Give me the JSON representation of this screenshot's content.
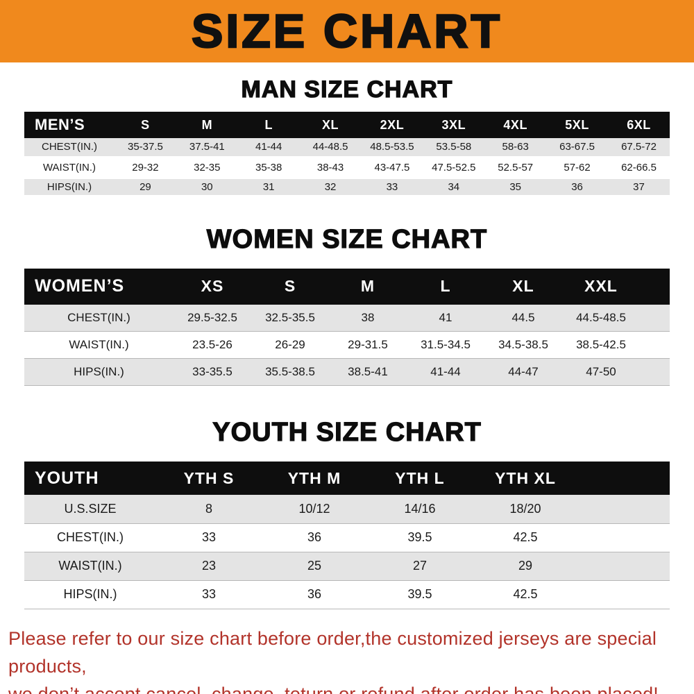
{
  "banner": {
    "title": "SIZE CHART",
    "bg": "#f0891d"
  },
  "sections": [
    {
      "heading": "MAN SIZE CHART",
      "table": {
        "name": "mens",
        "header": [
          "MEN’S",
          "S",
          "M",
          "L",
          "XL",
          "2XL",
          "3XL",
          "4XL",
          "5XL",
          "6XL"
        ],
        "rows": [
          [
            "CHEST(IN.)",
            "35-37.5",
            "37.5-41",
            "41-44",
            "44-48.5",
            "48.5-53.5",
            "53.5-58",
            "58-63",
            "63-67.5",
            "67.5-72"
          ],
          [
            "WAIST(IN.)",
            "29-32",
            "32-35",
            "35-38",
            "38-43",
            "43-47.5",
            "47.5-52.5",
            "52.5-57",
            "57-62",
            "62-66.5"
          ],
          [
            "HIPS(IN.)",
            "29",
            "30",
            "31",
            "32",
            "33",
            "34",
            "35",
            "36",
            "37"
          ]
        ]
      }
    },
    {
      "heading": "WOMEN SIZE CHART",
      "table": {
        "name": "womens",
        "header": [
          "WOMEN’S",
          "XS",
          "S",
          "M",
          "L",
          "XL",
          "XXL"
        ],
        "rows": [
          [
            "CHEST(IN.)",
            "29.5-32.5",
            "32.5-35.5",
            "38",
            "41",
            "44.5",
            "44.5-48.5"
          ],
          [
            "WAIST(IN.)",
            "23.5-26",
            "26-29",
            "29-31.5",
            "31.5-34.5",
            "34.5-38.5",
            "38.5-42.5"
          ],
          [
            "HIPS(IN.)",
            "33-35.5",
            "35.5-38.5",
            "38.5-41",
            "41-44",
            "44-47",
            "47-50"
          ]
        ]
      }
    },
    {
      "heading": "YOUTH SIZE CHART",
      "table": {
        "name": "youth",
        "header": [
          "YOUTH",
          "YTH S",
          "YTH M",
          "YTH L",
          "YTH XL"
        ],
        "rows": [
          [
            "U.S.SIZE",
            "8",
            "10/12",
            "14/16",
            "18/20"
          ],
          [
            "CHEST(IN.)",
            "33",
            "36",
            "39.5",
            "42.5"
          ],
          [
            "WAIST(IN.)",
            "23",
            "25",
            "27",
            "29"
          ],
          [
            "HIPS(IN.)",
            "33",
            "36",
            "39.5",
            "42.5"
          ]
        ]
      }
    }
  ],
  "footer": {
    "line1": "Please refer to our size chart before order,the customized jerseys are special products,",
    "line2": "we don’t accept cancel, change, teturn or refund after order has been placed!",
    "color": "#b2332a"
  }
}
